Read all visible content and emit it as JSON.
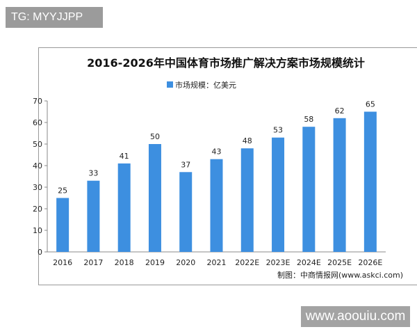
{
  "tag_label": "TG: MYYJJPP",
  "watermark_site": "www.aoouiu.com",
  "chart_data": {
    "type": "bar",
    "title": "2016-2026年中国体育市场推广解决方案市场规模统计",
    "legend": "市场规模：亿美元",
    "legend_position": "top-center",
    "categories": [
      "2016",
      "2017",
      "2018",
      "2019",
      "2020",
      "2021",
      "2022E",
      "2023E",
      "2024E",
      "2025E",
      "2026E"
    ],
    "values": [
      25,
      33,
      41,
      50,
      37,
      43,
      48,
      53,
      58,
      62,
      65
    ],
    "ylim": [
      0,
      70
    ],
    "yticks": [
      0,
      10,
      20,
      30,
      40,
      50,
      60,
      70
    ],
    "xlabel": "",
    "ylabel": "",
    "grid": false,
    "bar_color": "#3d8fe0",
    "source": "制图：中商情报网(www.askci.com)"
  }
}
